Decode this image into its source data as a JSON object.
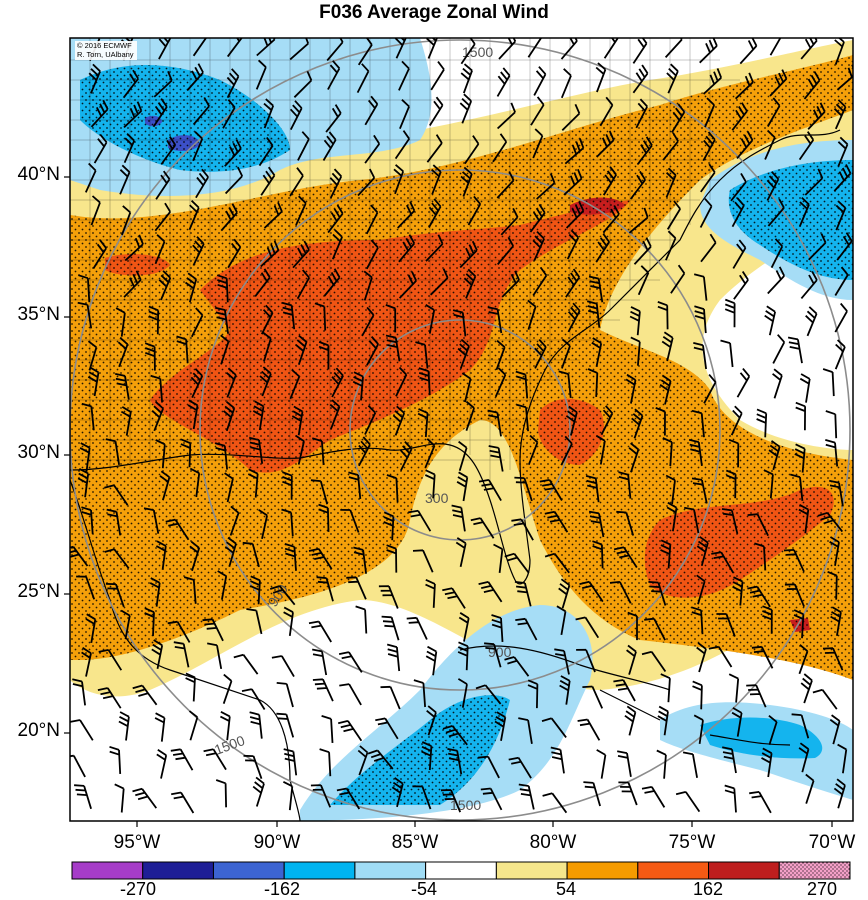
{
  "title": "F036 Average Zonal Wind",
  "credit": {
    "line1": "© 2016 ECMWF",
    "line2": "R. Torn, UAlbany"
  },
  "lat_labels": [
    "40°N",
    "35°N",
    "30°N",
    "25°N",
    "20°N"
  ],
  "lon_labels": [
    "95°W",
    "90°W",
    "85°W",
    "80°W",
    "75°W",
    "70°W"
  ],
  "colorbar": {
    "labels": [
      "-270",
      "-162",
      "-54",
      "54",
      "162",
      "270"
    ],
    "colors": [
      "#a63cc8",
      "#1e1e96",
      "#3c64d2",
      "#00b4f0",
      "#a0dcf5",
      "#ffffff",
      "#f5e68c",
      "#f59b00",
      "#f55a14",
      "#be1e1e",
      "#f5a0c8"
    ]
  },
  "range_ring_labels": [
    "300",
    "900",
    "1500"
  ],
  "colors": {
    "light_yellow": "#f8e68c",
    "orange": "#f5a00a",
    "red_orange": "#f05514",
    "dark_red": "#c81e1e",
    "light_blue": "#a6ddf6",
    "blue": "#14b4ee",
    "dark_blue": "#3c50c8",
    "ring_gray": "#8c8c8c"
  }
}
